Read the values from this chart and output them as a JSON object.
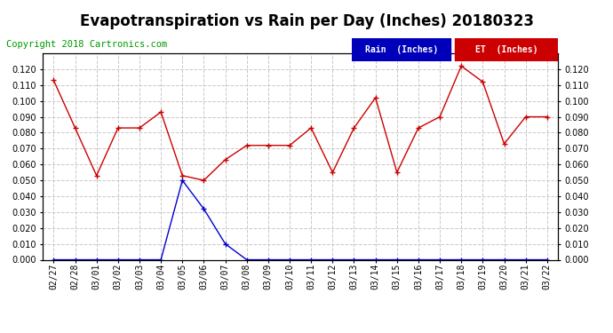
{
  "title": "Evapotranspiration vs Rain per Day (Inches) 20180323",
  "copyright": "Copyright 2018 Cartronics.com",
  "background_color": "#ffffff",
  "grid_color": "#c8c8c8",
  "x_labels": [
    "02/27",
    "02/28",
    "03/01",
    "03/02",
    "03/03",
    "03/04",
    "03/05",
    "03/06",
    "03/07",
    "03/08",
    "03/09",
    "03/10",
    "03/11",
    "03/12",
    "03/13",
    "03/14",
    "03/15",
    "03/16",
    "03/17",
    "03/18",
    "03/19",
    "03/20",
    "03/21",
    "03/22"
  ],
  "et_values": [
    0.113,
    0.083,
    0.053,
    0.083,
    0.083,
    0.093,
    0.053,
    0.05,
    0.063,
    0.072,
    0.072,
    0.072,
    0.083,
    0.055,
    0.083,
    0.102,
    0.055,
    0.083,
    0.09,
    0.122,
    0.112,
    0.073,
    0.09,
    0.09
  ],
  "rain_values": [
    0.0,
    0.0,
    0.0,
    0.0,
    0.0,
    0.0,
    0.05,
    0.032,
    0.01,
    0.0,
    0.0,
    0.0,
    0.0,
    0.0,
    0.0,
    0.0,
    0.0,
    0.0,
    0.0,
    0.0,
    0.0,
    0.0,
    0.0,
    0.0
  ],
  "et_color": "#cc0000",
  "rain_color": "#0000cc",
  "ylim": [
    0.0,
    0.13
  ],
  "yticks": [
    0.0,
    0.01,
    0.02,
    0.03,
    0.04,
    0.05,
    0.06,
    0.07,
    0.08,
    0.09,
    0.1,
    0.11,
    0.12
  ],
  "legend_rain_label": "Rain  (Inches)",
  "legend_et_label": "ET  (Inches)",
  "legend_rain_bg": "#0000bb",
  "legend_et_bg": "#cc0000",
  "title_fontsize": 12,
  "copyright_fontsize": 7.5,
  "tick_fontsize": 7,
  "ytick_fontsize": 7,
  "marker": "+",
  "marker_size": 5,
  "linewidth": 1.0
}
